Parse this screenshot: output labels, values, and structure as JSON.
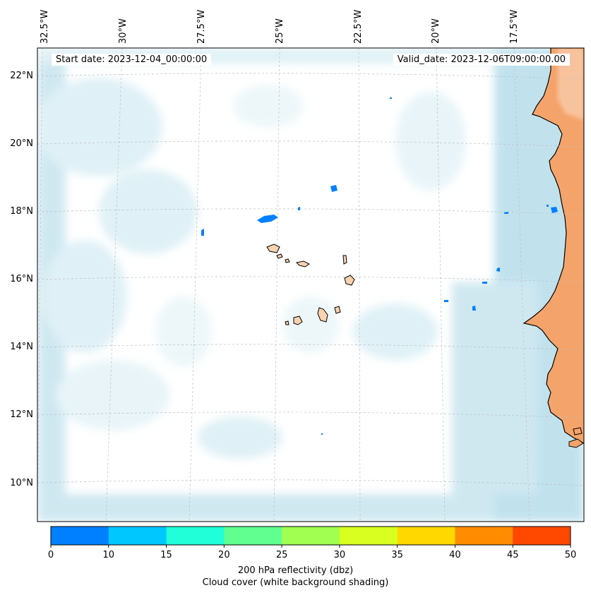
{
  "start_date": "Start date: 2023-12-04_00:00:00",
  "valid_date": "Valid_date: 2023-12-06T09:00:00.00",
  "lon_labels": [
    "32.5°W",
    "30°W",
    "27.5°W",
    "25°W",
    "22.5°W",
    "20°W",
    "17.5°W"
  ],
  "lat_labels": [
    "22°N",
    "20°N",
    "18°N",
    "16°N",
    "14°N",
    "12°N",
    "10°N"
  ],
  "colorbar": {
    "ticks": [
      "0",
      "10",
      "15",
      "20",
      "25",
      "30",
      "35",
      "40",
      "45",
      "50"
    ],
    "colors": [
      "#0080ff",
      "#00c8ff",
      "#20ffd8",
      "#60ff90",
      "#a0ff50",
      "#d8ff20",
      "#ffd800",
      "#ff8c00",
      "#ff4800"
    ],
    "label": "200 hPa reflectivity (dbz)",
    "sublabel": "Cloud cover (white background shading)"
  },
  "colors": {
    "land": "#f4a46a",
    "island_fill": "#f9d2b0",
    "cloud": "#b8dde9",
    "ocean": "#ffffff"
  },
  "icons": {
    "coastline": "coastline-icon",
    "island": "island-icon",
    "reflectivity": "reflectivity-patch-icon"
  }
}
